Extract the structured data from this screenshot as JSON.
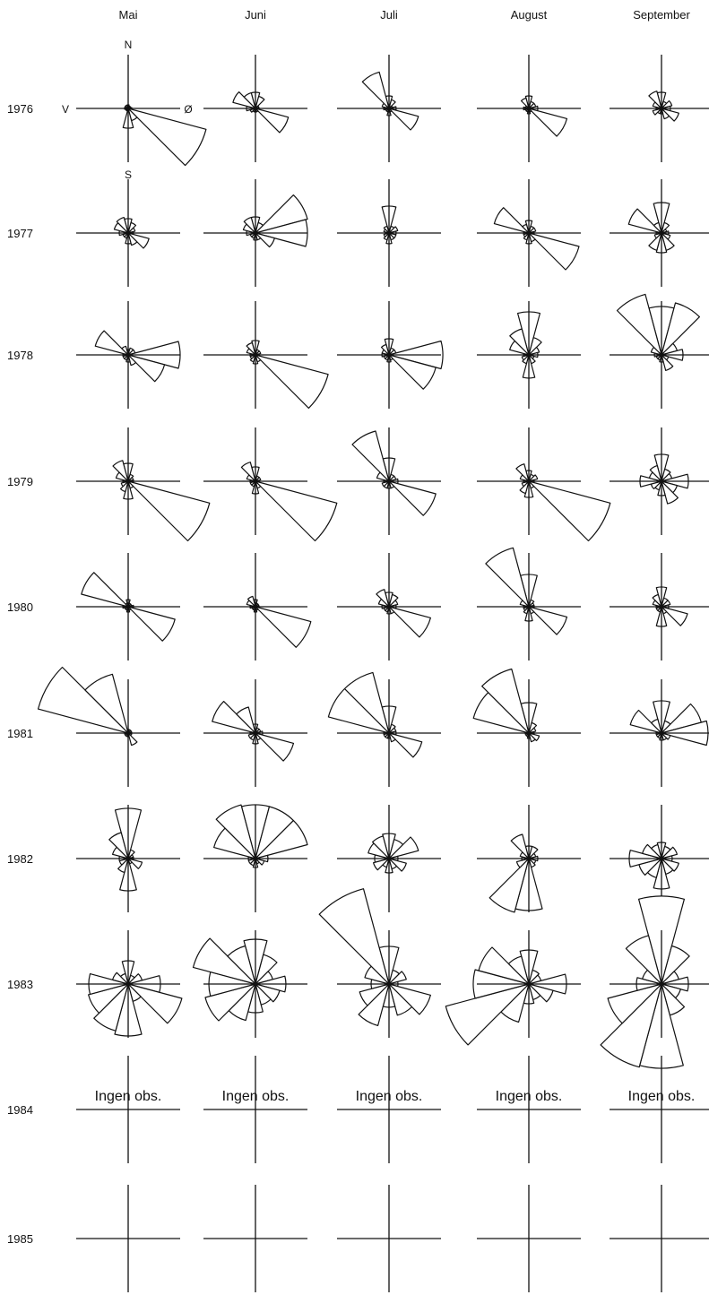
{
  "chart_data": {
    "type": "wind-rose-grid",
    "months": [
      "Mai",
      "Juni",
      "Juli",
      "August",
      "September"
    ],
    "years": [
      "1976",
      "1977",
      "1978",
      "1979",
      "1980",
      "1981",
      "1982",
      "1983",
      "1984",
      "1985"
    ],
    "compass": {
      "north": "N",
      "south": "S",
      "west": "V",
      "east": "Ø"
    },
    "no_observation_text": "Ingen obs.",
    "directions_deg": [
      0,
      30,
      60,
      90,
      120,
      150,
      180,
      210,
      240,
      270,
      300,
      330
    ],
    "relative_frequencies": {
      "1976": [
        [
          4,
          2,
          2,
          4,
          90,
          14,
          22,
          2,
          2,
          4,
          4,
          4
        ],
        [
          18,
          14,
          4,
          4,
          38,
          4,
          4,
          4,
          6,
          10,
          26,
          18
        ],
        [
          14,
          10,
          4,
          8,
          34,
          4,
          8,
          4,
          4,
          6,
          8,
          42
        ],
        [
          14,
          8,
          8,
          10,
          44,
          4,
          6,
          4,
          4,
          6,
          4,
          12
        ],
        [
          18,
          8,
          12,
          10,
          20,
          12,
          6,
          6,
          10,
          6,
          10,
          20
        ]
      ],
      "1977": [
        [
          16,
          12,
          8,
          6,
          24,
          14,
          12,
          6,
          6,
          10,
          16,
          18
        ],
        [
          18,
          12,
          60,
          58,
          22,
          8,
          8,
          6,
          6,
          10,
          14,
          18
        ],
        [
          30,
          8,
          10,
          8,
          8,
          8,
          12,
          8,
          6,
          4,
          6,
          8
        ],
        [
          14,
          8,
          8,
          6,
          58,
          10,
          12,
          8,
          6,
          6,
          40,
          10
        ],
        [
          34,
          12,
          6,
          8,
          10,
          20,
          22,
          20,
          8,
          6,
          38,
          12
        ]
      ],
      "1978": [
        [
          6,
          8,
          8,
          58,
          42,
          12,
          8,
          6,
          6,
          6,
          38,
          10
        ],
        [
          16,
          6,
          6,
          4,
          84,
          8,
          10,
          8,
          6,
          6,
          10,
          14
        ],
        [
          18,
          8,
          8,
          60,
          54,
          6,
          8,
          6,
          6,
          8,
          8,
          12
        ],
        [
          48,
          20,
          12,
          10,
          6,
          10,
          26,
          10,
          8,
          6,
          22,
          30
        ],
        [
          54,
          60,
          18,
          24,
          8,
          18,
          8,
          6,
          6,
          8,
          12,
          70
        ]
      ],
      "1979": [
        [
          20,
          8,
          6,
          6,
          94,
          8,
          20,
          12,
          8,
          6,
          14,
          24
        ],
        [
          16,
          6,
          6,
          4,
          94,
          8,
          14,
          6,
          6,
          6,
          10,
          22
        ],
        [
          26,
          8,
          8,
          10,
          54,
          8,
          8,
          8,
          8,
          6,
          14,
          58
        ],
        [
          12,
          8,
          10,
          6,
          94,
          8,
          18,
          14,
          8,
          6,
          10,
          20
        ],
        [
          30,
          14,
          12,
          30,
          18,
          26,
          16,
          10,
          12,
          24,
          14,
          18
        ]
      ],
      "1980": [
        [
          8,
          4,
          4,
          6,
          54,
          4,
          6,
          4,
          4,
          6,
          54,
          4
        ],
        [
          8,
          4,
          4,
          4,
          64,
          4,
          6,
          4,
          4,
          6,
          10,
          12
        ],
        [
          16,
          14,
          10,
          8,
          48,
          8,
          8,
          6,
          6,
          8,
          12,
          20
        ],
        [
          36,
          8,
          6,
          6,
          44,
          8,
          16,
          8,
          6,
          6,
          10,
          68
        ],
        [
          22,
          10,
          10,
          8,
          30,
          8,
          22,
          6,
          6,
          6,
          10,
          14
        ]
      ],
      "1981": [
        [
          4,
          4,
          4,
          4,
          4,
          14,
          4,
          4,
          4,
          4,
          104,
          68
        ],
        [
          10,
          6,
          6,
          8,
          44,
          8,
          12,
          8,
          8,
          6,
          50,
          30
        ],
        [
          30,
          10,
          8,
          8,
          38,
          10,
          6,
          6,
          6,
          6,
          70,
          70
        ],
        [
          34,
          12,
          8,
          6,
          12,
          10,
          6,
          4,
          4,
          4,
          64,
          74
        ],
        [
          36,
          14,
          46,
          52,
          10,
          8,
          8,
          6,
          6,
          6,
          36,
          16
        ]
      ],
      "1982": [
        [
          56,
          10,
          6,
          6,
          16,
          6,
          36,
          16,
          10,
          10,
          18,
          30
        ],
        [
          60,
          60,
          60,
          14,
          10,
          6,
          10,
          8,
          8,
          8,
          48,
          62
        ],
        [
          28,
          22,
          34,
          10,
          20,
          12,
          16,
          10,
          18,
          16,
          24,
          26
        ],
        [
          14,
          14,
          8,
          10,
          8,
          10,
          58,
          62,
          14,
          8,
          10,
          28
        ],
        [
          18,
          14,
          18,
          12,
          20,
          18,
          34,
          22,
          26,
          36,
          22,
          16
        ]
      ],
      "1983": [
        [
          26,
          10,
          16,
          36,
          62,
          20,
          58,
          54,
          46,
          44,
          18,
          12
        ],
        [
          50,
          34,
          20,
          34,
          28,
          24,
          32,
          42,
          58,
          52,
          72,
          44
        ],
        [
          42,
          16,
          20,
          10,
          48,
          36,
          26,
          48,
          34,
          20,
          28,
          110
        ],
        [
          38,
          16,
          14,
          42,
          28,
          18,
          22,
          44,
          96,
          62,
          58,
          32
        ],
        [
          98,
          44,
          20,
          30,
          22,
          36,
          94,
          96,
          62,
          28,
          22,
          56
        ]
      ]
    }
  }
}
